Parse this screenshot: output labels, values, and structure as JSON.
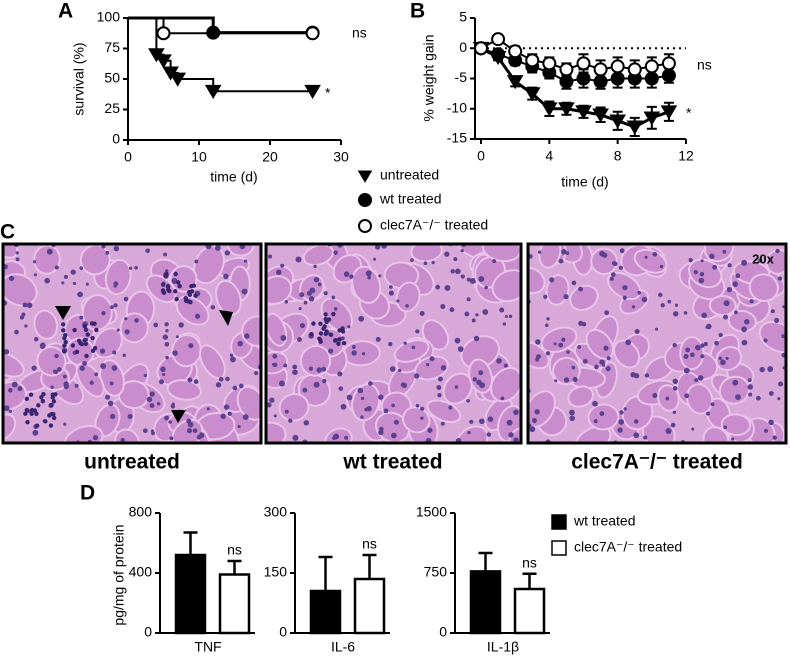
{
  "chart_data": [
    {
      "type": "survival",
      "panel_label": "A",
      "xlabel": "time (d)",
      "ylabel": "survival (%)",
      "xlim": [
        0,
        30
      ],
      "xticks": [
        0,
        10,
        20,
        30
      ],
      "ylim": [
        0,
        100
      ],
      "yticks": [
        0,
        25,
        50,
        75,
        100
      ],
      "series": [
        {
          "name": "untreated",
          "marker": "triangle",
          "color": "#000000",
          "marker_fill": "#000000",
          "x": [
            0,
            4,
            5,
            6,
            7,
            12,
            26
          ],
          "values": [
            100,
            70,
            65,
            55,
            50,
            40,
            40
          ]
        },
        {
          "name": "wt treated",
          "marker": "circle",
          "color": "#000000",
          "marker_fill": "#000000",
          "x": [
            0,
            12,
            26
          ],
          "values": [
            100,
            88,
            88
          ]
        },
        {
          "name": "clec7A⁻/⁻ treated",
          "marker": "circle",
          "color": "#000000",
          "marker_fill": "#ffffff",
          "x": [
            0,
            5,
            26
          ],
          "values": [
            100,
            87.5,
            87.5
          ]
        }
      ],
      "annotations": [
        "ns",
        "*"
      ]
    },
    {
      "type": "line_errorbar",
      "panel_label": "B",
      "xlabel": "time (d)",
      "ylabel": "% weight gain",
      "xlim": [
        0,
        12
      ],
      "xticks": [
        0,
        4,
        8,
        12
      ],
      "ylim": [
        -15,
        5
      ],
      "yticks": [
        -15,
        -10,
        -5,
        0,
        5
      ],
      "reference_line": 0,
      "x": [
        0,
        1,
        2,
        3,
        4,
        5,
        6,
        7,
        8,
        9,
        10,
        11
      ],
      "series": [
        {
          "marker": "triangle",
          "color": "#000000",
          "marker_fill": "#000000",
          "values": [
            0,
            -1.5,
            -5.5,
            -7.5,
            -10,
            -10,
            -10.5,
            -11,
            -12,
            -13,
            -11.5,
            -10.5
          ],
          "errors": [
            0,
            0.5,
            0.8,
            1,
            1.2,
            1,
            1,
            1.2,
            1.5,
            1.5,
            1.8,
            1.5
          ]
        },
        {
          "marker": "circle",
          "color": "#000000",
          "marker_fill": "#000000",
          "values": [
            0,
            -1,
            -2,
            -3,
            -4,
            -5.5,
            -5,
            -5.5,
            -5,
            -5,
            -5,
            -4.5
          ],
          "errors": [
            0,
            0.5,
            0.8,
            1,
            1,
            1.2,
            1.5,
            1.2,
            1.5,
            1.5,
            1.5,
            1.2
          ]
        },
        {
          "marker": "circle",
          "color": "#000000",
          "marker_fill": "#ffffff",
          "values": [
            0,
            1.5,
            -0.5,
            -2,
            -2.5,
            -3.5,
            -2.5,
            -3.5,
            -3,
            -3.5,
            -3,
            -2.5
          ],
          "errors": [
            0,
            0.5,
            0.8,
            1,
            1,
            1,
            1.5,
            1.5,
            1.5,
            1.5,
            1.5,
            1.5
          ]
        }
      ],
      "annotations": [
        "ns",
        "*"
      ]
    },
    {
      "type": "bar",
      "panel_label": "D",
      "ylabel": "pg/mg of protein",
      "xlabel": "TNF",
      "ylim": [
        0,
        800
      ],
      "yticks": [
        0,
        400,
        800
      ],
      "series": [
        {
          "name": "wt treated",
          "color": "#000000",
          "values": [
            520
          ],
          "errors": [
            150
          ]
        },
        {
          "name": "clec7A⁻/⁻ treated",
          "color": "#ffffff",
          "values": [
            390
          ],
          "errors": [
            90
          ]
        }
      ],
      "annotations": [
        "ns"
      ]
    },
    {
      "type": "bar",
      "xlabel": "IL-6",
      "ylim": [
        0,
        300
      ],
      "yticks": [
        0,
        150,
        300
      ],
      "series": [
        {
          "color": "#000000",
          "values": [
            105
          ],
          "errors": [
            85
          ]
        },
        {
          "color": "#ffffff",
          "values": [
            135
          ],
          "errors": [
            60
          ]
        }
      ],
      "annotations": [
        "ns"
      ]
    },
    {
      "type": "bar",
      "xlabel": "IL-1β",
      "ylim": [
        0,
        1500
      ],
      "yticks": [
        0,
        750,
        1500
      ],
      "series": [
        {
          "color": "#000000",
          "values": [
            770
          ],
          "errors": [
            230
          ]
        },
        {
          "color": "#ffffff",
          "values": [
            550
          ],
          "errors": [
            190
          ]
        }
      ],
      "annotations": [
        "ns"
      ]
    }
  ],
  "micrographs": {
    "panel_label": "C",
    "magnification": "20x",
    "captions": [
      "untreated",
      "wt treated",
      "clec7A⁻/⁻ treated"
    ]
  }
}
